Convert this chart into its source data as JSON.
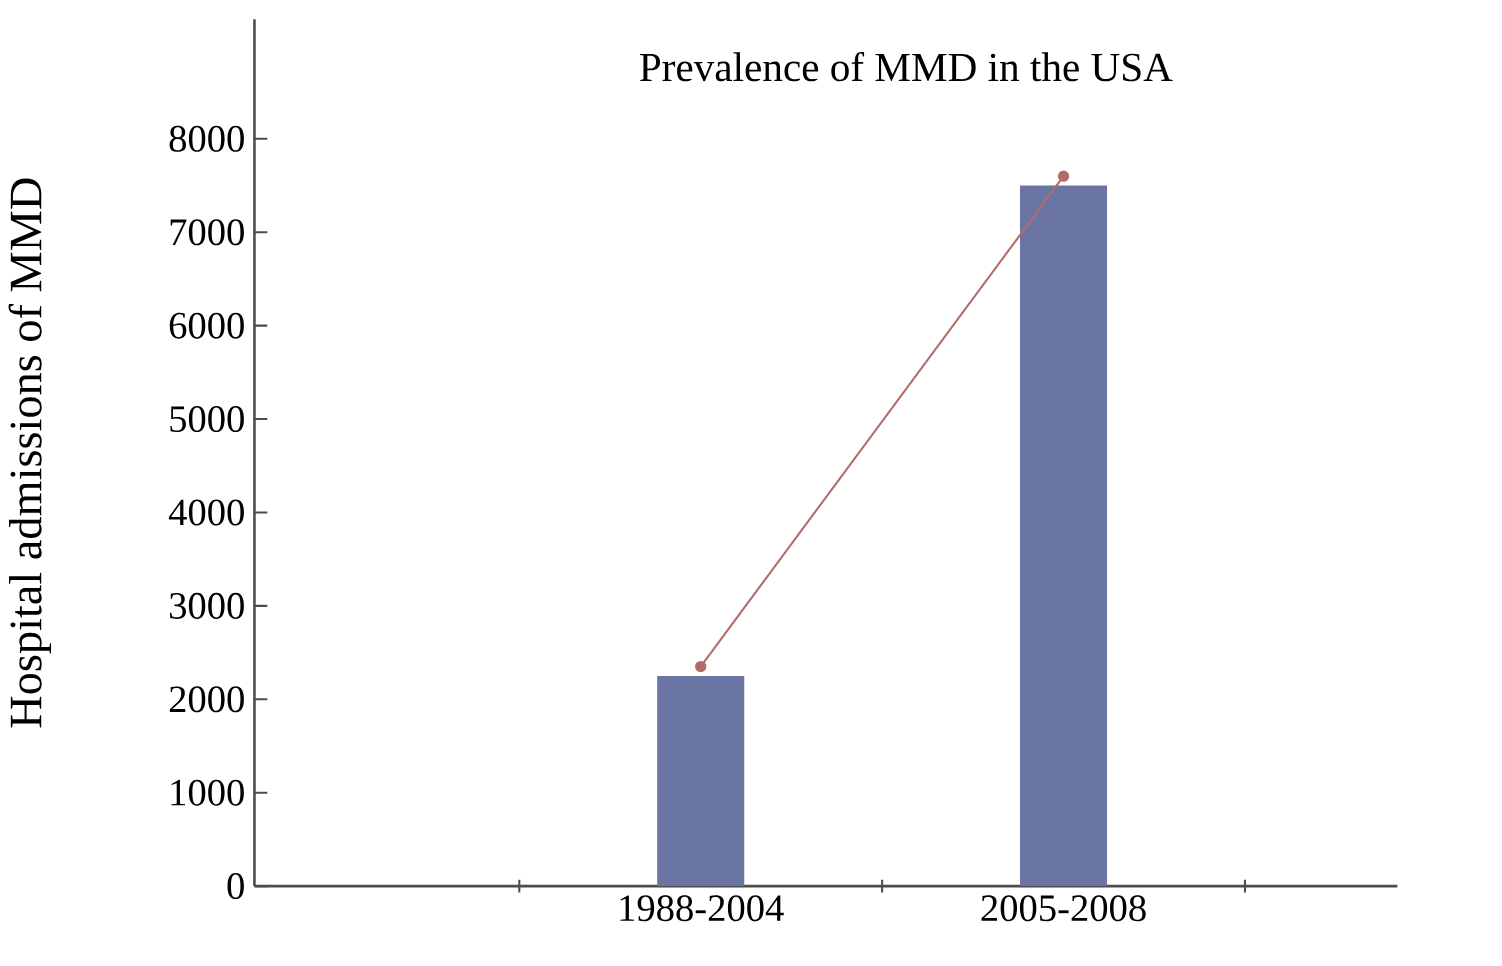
{
  "chart_data": {
    "type": "bar",
    "title": "Prevalence of MMD in the USA",
    "ylabel": "Hospital admissions of MMD",
    "categories": [
      null,
      "1988-2004",
      "2005-2008"
    ],
    "series": [
      {
        "color": "#6a75a3",
        "values": [
          null,
          2250,
          7500
        ]
      },
      {
        "type": "line",
        "color": "#b56a6a",
        "values": [
          null,
          2350,
          7600
        ]
      }
    ],
    "marker": "circle",
    "ylim": [
      0,
      9280
    ],
    "yticks": [
      0,
      1000,
      2000,
      3000,
      4000,
      5000,
      6000,
      7000,
      8000
    ]
  }
}
